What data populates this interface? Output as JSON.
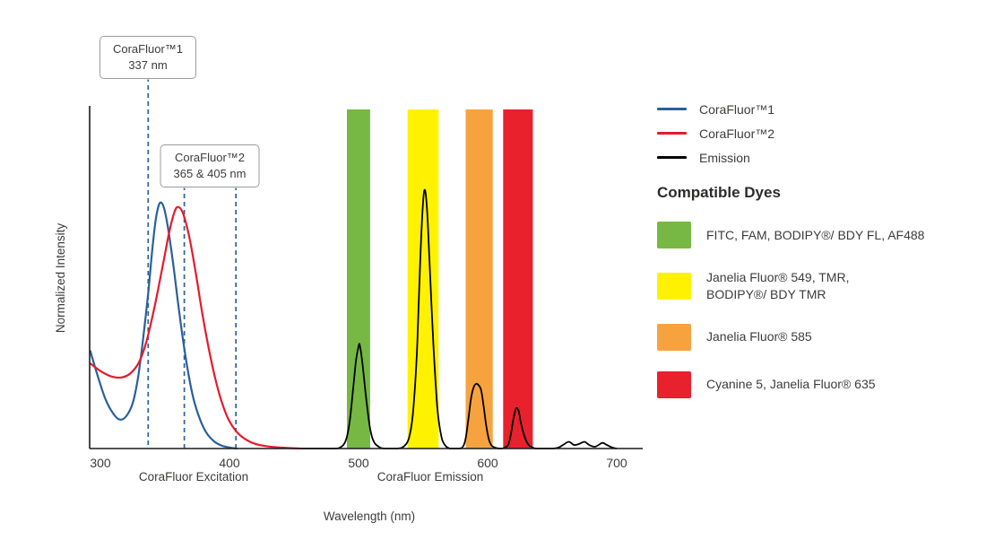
{
  "colors": {
    "text": "#3c3c3b",
    "axis": "#1a1a1a",
    "dashed": "#2a6099",
    "blue_series": "#2a6099",
    "red_series": "#e8192c",
    "emission_series": "#000000"
  },
  "callouts": [
    {
      "line1": "CoraFluor™1",
      "line2": "337 nm"
    },
    {
      "line1": "CoraFluor™2",
      "line2": "365 & 405 nm"
    }
  ],
  "axis": {
    "y_title": "Normalized Intensity",
    "x_title": "Wavelength (nm)",
    "x_label_excitation": "CoraFluor Excitation",
    "x_label_emission": "CoraFluor Emission"
  },
  "legend": [
    {
      "label": "CoraFluor™1",
      "color": "#2a6099"
    },
    {
      "label": "CoraFluor™2",
      "color": "#e8192c"
    },
    {
      "label": "Emission",
      "color": "#000000"
    }
  ],
  "dyes": {
    "heading": "Compatible Dyes",
    "items": [
      {
        "color": "#76b843",
        "label": "FITC, FAM, BODIPY®/ BDY FL, AF488"
      },
      {
        "color": "#fff200",
        "label": "Janelia Fluor® 549, TMR,\nBODIPY®/ BDY TMR"
      },
      {
        "color": "#f6a33f",
        "label": "Janelia Fluor® 585"
      },
      {
        "color": "#e8212d",
        "label": "Cyanine 5, Janelia Fluor® 635"
      }
    ]
  },
  "chart_data": {
    "type": "line",
    "title": "",
    "xlabel": "Wavelength (nm)",
    "ylabel": "Normalized Intensity",
    "x_ticks": [
      300,
      400,
      500,
      600,
      700
    ],
    "xlim": [
      292,
      717
    ],
    "ylim": [
      0,
      1.3
    ],
    "grid": false,
    "legend_position": "right",
    "dashed_lines": [
      {
        "nm": 337,
        "series": "CoraFluor™1"
      },
      {
        "nm": 365,
        "series": "CoraFluor™2"
      },
      {
        "nm": 405,
        "series": "CoraFluor™2"
      }
    ],
    "bands": [
      {
        "name": "green",
        "from": 491,
        "to": 509,
        "color": "#76b843",
        "dyes": "FITC, FAM, BODIPY®/ BDY FL, AF488"
      },
      {
        "name": "yellow",
        "from": 538,
        "to": 562,
        "color": "#fff200",
        "dyes": "Janelia Fluor® 549, TMR, BODIPY®/ BDY TMR"
      },
      {
        "name": "orange",
        "from": 583,
        "to": 604,
        "color": "#f6a33f",
        "dyes": "Janelia Fluor® 585"
      },
      {
        "name": "red",
        "from": 612,
        "to": 635,
        "color": "#e8212d",
        "dyes": "Cyanine 5, Janelia Fluor® 635"
      }
    ],
    "series": [
      {
        "id": "corafluor1-excitation",
        "name": "CoraFluor™1",
        "color": "#2a6099",
        "width": 2.2,
        "points": [
          [
            292,
            0.38
          ],
          [
            298,
            0.28
          ],
          [
            304,
            0.19
          ],
          [
            310,
            0.135
          ],
          [
            315,
            0.112
          ],
          [
            320,
            0.125
          ],
          [
            325,
            0.175
          ],
          [
            329,
            0.27
          ],
          [
            333,
            0.42
          ],
          [
            337,
            0.6
          ],
          [
            340,
            0.76
          ],
          [
            343,
            0.89
          ],
          [
            346,
            0.95
          ],
          [
            349,
            0.935
          ],
          [
            352,
            0.865
          ],
          [
            356,
            0.73
          ],
          [
            360,
            0.57
          ],
          [
            364,
            0.42
          ],
          [
            368,
            0.295
          ],
          [
            372,
            0.195
          ],
          [
            377,
            0.115
          ],
          [
            382,
            0.062
          ],
          [
            388,
            0.028
          ],
          [
            394,
            0.011
          ],
          [
            400,
            0.004
          ],
          [
            406,
            0
          ]
        ]
      },
      {
        "id": "corafluor2-excitation",
        "name": "CoraFluor™2",
        "color": "#e8192c",
        "width": 2.2,
        "points": [
          [
            292,
            0.33
          ],
          [
            300,
            0.3
          ],
          [
            308,
            0.28
          ],
          [
            316,
            0.275
          ],
          [
            323,
            0.29
          ],
          [
            330,
            0.335
          ],
          [
            336,
            0.42
          ],
          [
            342,
            0.55
          ],
          [
            348,
            0.7
          ],
          [
            353,
            0.83
          ],
          [
            357,
            0.91
          ],
          [
            360,
            0.935
          ],
          [
            364,
            0.91
          ],
          [
            369,
            0.815
          ],
          [
            374,
            0.675
          ],
          [
            379,
            0.52
          ],
          [
            384,
            0.385
          ],
          [
            389,
            0.27
          ],
          [
            394,
            0.18
          ],
          [
            399,
            0.115
          ],
          [
            405,
            0.068
          ],
          [
            412,
            0.037
          ],
          [
            420,
            0.018
          ],
          [
            430,
            0.008
          ],
          [
            442,
            0.003
          ],
          [
            455,
            0
          ]
        ]
      },
      {
        "id": "emission",
        "name": "Emission",
        "color": "#000000",
        "width": 1.8,
        "points": [
          [
            455,
            0
          ],
          [
            480,
            0
          ],
          [
            486,
            0.005
          ],
          [
            490,
            0.03
          ],
          [
            493,
            0.1
          ],
          [
            496,
            0.24
          ],
          [
            498,
            0.34
          ],
          [
            500,
            0.395
          ],
          [
            501,
            0.4
          ],
          [
            503,
            0.33
          ],
          [
            506,
            0.19
          ],
          [
            509,
            0.075
          ],
          [
            512,
            0.025
          ],
          [
            516,
            0.006
          ],
          [
            520,
            0
          ],
          [
            530,
            0
          ],
          [
            535,
            0.008
          ],
          [
            539,
            0.04
          ],
          [
            542,
            0.13
          ],
          [
            545,
            0.35
          ],
          [
            547,
            0.62
          ],
          [
            549,
            0.87
          ],
          [
            551,
            1.0
          ],
          [
            553,
            0.93
          ],
          [
            555,
            0.72
          ],
          [
            558,
            0.4
          ],
          [
            561,
            0.16
          ],
          [
            564,
            0.05
          ],
          [
            567,
            0.013
          ],
          [
            571,
            0
          ],
          [
            578,
            0
          ],
          [
            581,
            0.008
          ],
          [
            583,
            0.04
          ],
          [
            585,
            0.11
          ],
          [
            587,
            0.19
          ],
          [
            589,
            0.235
          ],
          [
            591,
            0.25
          ],
          [
            593,
            0.245
          ],
          [
            595,
            0.225
          ],
          [
            597,
            0.16
          ],
          [
            599,
            0.085
          ],
          [
            601,
            0.035
          ],
          [
            603,
            0.012
          ],
          [
            606,
            0.003
          ],
          [
            610,
            0
          ],
          [
            613,
            0.003
          ],
          [
            616,
            0.015
          ],
          [
            618,
            0.055
          ],
          [
            620,
            0.115
          ],
          [
            622,
            0.155
          ],
          [
            624,
            0.145
          ],
          [
            626,
            0.095
          ],
          [
            629,
            0.04
          ],
          [
            632,
            0.013
          ],
          [
            635,
            0.004
          ],
          [
            638,
            0
          ],
          [
            650,
            0
          ],
          [
            655,
            0.004
          ],
          [
            659,
            0.016
          ],
          [
            663,
            0.026
          ],
          [
            667,
            0.014
          ],
          [
            671,
            0.018
          ],
          [
            675,
            0.026
          ],
          [
            679,
            0.013
          ],
          [
            683,
            0.007
          ],
          [
            686,
            0.014
          ],
          [
            689,
            0.022
          ],
          [
            692,
            0.015
          ],
          [
            696,
            0.005
          ],
          [
            700,
            0
          ]
        ]
      }
    ]
  }
}
